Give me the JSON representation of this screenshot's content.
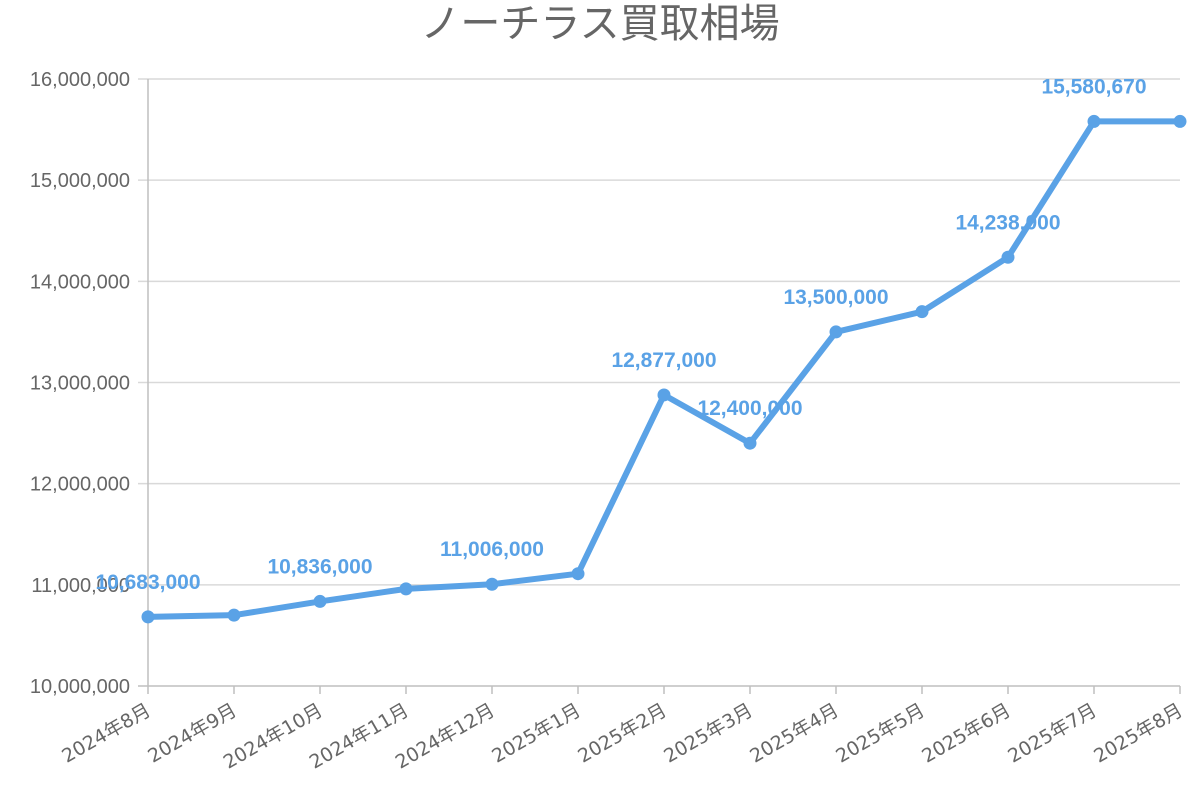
{
  "chart_data": {
    "type": "line",
    "title": "ノーチラス買取相場",
    "xlabel": "",
    "ylabel": "",
    "categories": [
      "2024年8月",
      "2024年9月",
      "2024年10月",
      "2024年11月",
      "2024年12月",
      "2025年1月",
      "2025年2月",
      "2025年3月",
      "2025年4月",
      "2025年5月",
      "2025年6月",
      "2025年7月",
      "2025年8月"
    ],
    "series": [
      {
        "values": [
          10683000,
          10700000,
          10836000,
          10960000,
          11006000,
          11110000,
          12877000,
          12400000,
          13500000,
          13700000,
          14238000,
          15580670,
          15580670
        ]
      }
    ],
    "data_labels": [
      {
        "index": 0,
        "text": "10,683,000"
      },
      {
        "index": 2,
        "text": "10,836,000"
      },
      {
        "index": 4,
        "text": "11,006,000"
      },
      {
        "index": 6,
        "text": "12,877,000"
      },
      {
        "index": 7,
        "text": "12,400,000"
      },
      {
        "index": 8,
        "text": "13,500,000"
      },
      {
        "index": 10,
        "text": "14,238,000"
      },
      {
        "index": 11,
        "text": "15,580,670"
      }
    ],
    "ylim": [
      10000000,
      16000000
    ],
    "yticks": [
      10000000,
      11000000,
      12000000,
      13000000,
      14000000,
      15000000,
      16000000
    ],
    "ytick_labels": [
      "10,000,000",
      "11,000,000",
      "12,000,000",
      "13,000,000",
      "14,000,000",
      "15,000,000",
      "16,000,000"
    ],
    "grid": true,
    "legend": "none",
    "colors": {
      "series": "#5aa2e6",
      "grid": "#d9d9d9",
      "axis_text": "#666666",
      "title": "#666666"
    }
  }
}
